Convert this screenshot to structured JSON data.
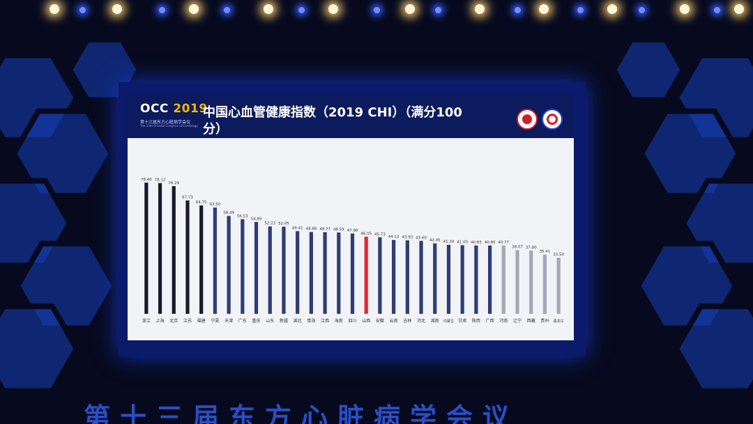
{
  "header": {
    "logo_main": "OCC",
    "logo_year": "2019",
    "logo_sub1": "第十三届东方心脏病学会议",
    "logo_sub2": "The 13th Oriental Congress of Cardiology",
    "title": "中国心血管健康指数（2019 CHI）（满分100\n分）"
  },
  "banner": {
    "text": "第十三届东方心脏病学会议"
  },
  "colors": {
    "bar_dark": "#1a1a2a",
    "bar_blue": "#2e3d78",
    "bar_highlight": "#e5262e",
    "bar_light": "#a4a8b6"
  },
  "chart_data": {
    "type": "bar",
    "title": "中国心血管健康指数（2019 CHI）（满分100分）",
    "xlabel": "",
    "ylabel": "",
    "ylim": [
      0,
      100
    ],
    "grid": false,
    "categories": [
      "浙江",
      "上海",
      "北京",
      "江苏",
      "福建",
      "宁夏",
      "天津",
      "广东",
      "重庆",
      "山东",
      "新疆",
      "湖北",
      "青海",
      "江西",
      "海南",
      "四川",
      "山西",
      "安徽",
      "云南",
      "吉林",
      "河北",
      "湖南",
      "内蒙古",
      "甘肃",
      "陕西",
      "广西",
      "河南",
      "辽宁",
      "西藏",
      "贵州",
      "黑龙江"
    ],
    "values": [
      78.4,
      78.12,
      76.29,
      67.73,
      64.75,
      63.5,
      58.49,
      56.53,
      54.89,
      52.23,
      52.05,
      49.41,
      48.88,
      48.77,
      48.59,
      47.98,
      46.05,
      45.73,
      44.12,
      43.93,
      43.6,
      42.05,
      41.2,
      41.0,
      40.83,
      40.8,
      40.77,
      38.07,
      37.8,
      35.41,
      33.5
    ],
    "value_labels": [
      "78.40",
      "78.12",
      "76.29",
      "67.73",
      "64.75",
      "63.50",
      "58.49",
      "56.53",
      "54.89",
      "52.23",
      "52.05",
      "49.41",
      "48.88",
      "48.77",
      "48.59",
      "47.98",
      "46.05",
      "45.73",
      "44.12",
      "43.93",
      "43.60",
      "42.05",
      "41.20",
      "41.00",
      "40.83",
      "40.80",
      "40.77",
      "38.07",
      "37.80",
      "35.41",
      "33.50"
    ],
    "bar_groups": [
      "dark",
      "dark",
      "dark",
      "dark",
      "dark",
      "blue",
      "blue",
      "blue",
      "blue",
      "blue",
      "blue",
      "blue",
      "blue",
      "blue",
      "blue",
      "blue",
      "highlight",
      "blue",
      "blue",
      "blue",
      "blue",
      "blue",
      "blue",
      "blue",
      "blue",
      "blue",
      "light",
      "light",
      "light",
      "light",
      "light"
    ]
  }
}
